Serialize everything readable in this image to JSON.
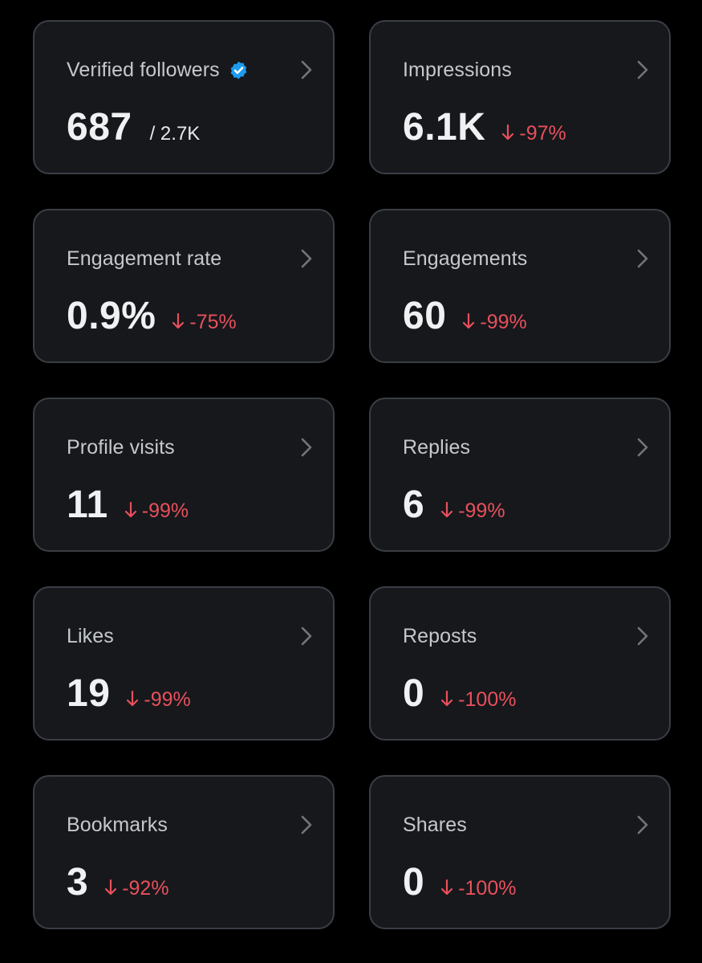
{
  "colors": {
    "background": "#000000",
    "card": "#16181c",
    "card_border": "#3a3e44",
    "label": "#c5c8cc",
    "value": "#eff1f2",
    "negative": "#e8505b",
    "verified": "#1d9bf0"
  },
  "cards": [
    {
      "label": "Verified followers",
      "value": "687",
      "total": "/ 2.7K",
      "icon": "verified-badge-icon"
    },
    {
      "label": "Impressions",
      "value": "6.1K",
      "delta": "-97%"
    },
    {
      "label": "Engagement rate",
      "value": "0.9%",
      "delta": "-75%"
    },
    {
      "label": "Engagements",
      "value": "60",
      "delta": "-99%"
    },
    {
      "label": "Profile visits",
      "value": "11",
      "delta": "-99%"
    },
    {
      "label": "Replies",
      "value": "6",
      "delta": "-99%"
    },
    {
      "label": "Likes",
      "value": "19",
      "delta": "-99%"
    },
    {
      "label": "Reposts",
      "value": "0",
      "delta": "-100%"
    },
    {
      "label": "Bookmarks",
      "value": "3",
      "delta": "-92%"
    },
    {
      "label": "Shares",
      "value": "0",
      "delta": "-100%"
    }
  ]
}
